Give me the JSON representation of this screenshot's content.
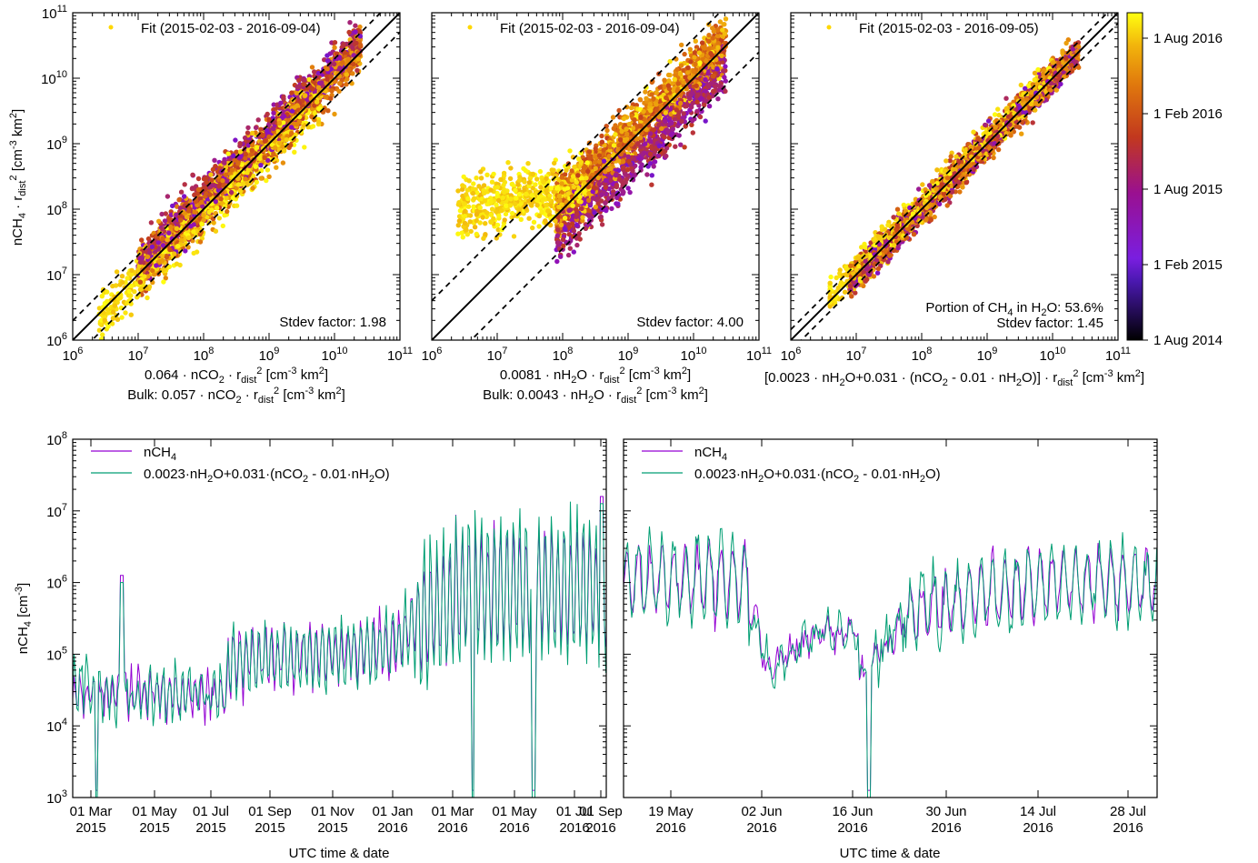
{
  "colorbar": {
    "ticks": [
      "1 Aug 2014",
      "1 Feb 2015",
      "1 Aug 2015",
      "1 Feb 2016",
      "1 Aug 2016"
    ],
    "colors": [
      "#000000",
      "#5a1fd6",
      "#8e0fbf",
      "#c23c1e",
      "#e0780d",
      "#f2b40c",
      "#ffff10"
    ]
  },
  "scatter": {
    "ylabel": "nCH4 · rdist2 [cm-3 km2]",
    "x_ticks": [
      "10^6",
      "10^7",
      "10^8",
      "10^9",
      "10^10",
      "10^11"
    ],
    "y_ticks": [
      "10^6",
      "10^7",
      "10^8",
      "10^9",
      "10^10",
      "10^11"
    ],
    "panels": [
      {
        "legend": "Fit (2015-02-03 - 2016-09-04)",
        "note": "Stdev factor: 1.98",
        "xlabel_1": "0.064 · nCO2 · rdist2 [cm-3 km2]",
        "xlabel_2": "Bulk: 0.057 · nCO2 · rdist2 [cm-3 km2]"
      },
      {
        "legend": "Fit (2015-02-03 - 2016-09-04)",
        "note": "Stdev factor: 4.00",
        "xlabel_1": "0.0081 · nH2O · rdist2 [cm-3 km2]",
        "xlabel_2": "Bulk: 0.0043 · nH2O · rdist2 [cm-3 km2]"
      },
      {
        "legend": "Fit (2015-02-03 - 2016-09-05)",
        "note_1": "Portion of CH4 in H2O: 53.6%",
        "note": "Stdev factor: 1.45",
        "xlabel_1": "[0.0023 · nH2O+0.031 · (nCO2 - 0.01 · nH2O)] · rdist2 [cm-3 km2]"
      }
    ]
  },
  "timeseries": {
    "ylabel": "nCH4 [cm-3]",
    "y_ticks": [
      "10^3",
      "10^4",
      "10^5",
      "10^6",
      "10^7",
      "10^8"
    ],
    "legend_1": "nCH4",
    "legend_2": "0.0023·nH2O+0.031·(nCO2 - 0.01·nH2O)",
    "line_colors": {
      "nCH4": "#9400d3",
      "model": "#009e73"
    },
    "left": {
      "xlabel": "UTC time & date",
      "x_ticks": [
        [
          "01 Mar",
          "2015"
        ],
        [
          "01 May",
          "2015"
        ],
        [
          "01 Jul",
          "2015"
        ],
        [
          "01 Sep",
          "2015"
        ],
        [
          "01 Nov",
          "2015"
        ],
        [
          "01 Jan",
          "2016"
        ],
        [
          "01 Mar",
          "2016"
        ],
        [
          "01 May",
          "2016"
        ],
        [
          "01 Jul",
          "2016"
        ],
        [
          "01 Sep",
          "2016"
        ]
      ]
    },
    "right": {
      "xlabel": "UTC time & date",
      "x_ticks": [
        [
          "19 May",
          "2016"
        ],
        [
          "02 Jun",
          "2016"
        ],
        [
          "16 Jun",
          "2016"
        ],
        [
          "30 Jun",
          "2016"
        ],
        [
          "14 Jul",
          "2016"
        ],
        [
          "28 Jul",
          "2016"
        ]
      ]
    }
  },
  "chart_data": [
    {
      "type": "scatter",
      "title": "",
      "xlabel": "0.064 · nCO2 · rdist2 [cm-3 km2]",
      "ylabel": "nCH4 · rdist2 [cm-3 km2]",
      "xscale": "log",
      "yscale": "log",
      "xlim": [
        1000000.0,
        100000000000.0
      ],
      "ylim": [
        1000000.0,
        100000000000.0
      ],
      "legend": "Fit (2015-02-03 - 2016-09-04)",
      "annotation": "Stdev factor: 1.98",
      "fit_band_factor": 1.98,
      "point_cloud": {
        "x_range": [
          2000000.0,
          40000000000.0
        ],
        "follows": "y≈x",
        "color_by": "date"
      }
    },
    {
      "type": "scatter",
      "title": "",
      "xlabel": "0.0081 · nH2O · rdist2 [cm-3 km2]",
      "ylabel": "nCH4 · rdist2 [cm-3 km2]",
      "xscale": "log",
      "yscale": "log",
      "xlim": [
        1000000.0,
        100000000000.0
      ],
      "ylim": [
        1000000.0,
        100000000000.0
      ],
      "legend": "Fit (2015-02-03 - 2016-09-04)",
      "annotation": "Stdev factor: 4.00",
      "fit_band_factor": 4.0,
      "point_cloud": {
        "x_range": [
          2000000.0,
          30000000000.0
        ],
        "follows": "y≈x (plateau near 1e8 at low x)",
        "color_by": "date"
      }
    },
    {
      "type": "scatter",
      "title": "",
      "xlabel": "[0.0023 · nH2O+0.031 · (nCO2 - 0.01 · nH2O)] · rdist2 [cm-3 km2]",
      "ylabel": "nCH4 · rdist2 [cm-3 km2]",
      "xscale": "log",
      "yscale": "log",
      "xlim": [
        1000000.0,
        100000000000.0
      ],
      "ylim": [
        1000000.0,
        100000000000.0
      ],
      "legend": "Fit (2015-02-03 - 2016-09-05)",
      "annotation": "Portion of CH4 in H2O: 53.6% / Stdev factor: 1.45",
      "fit_band_factor": 1.45,
      "point_cloud": {
        "x_range": [
          10000000.0,
          25000000000.0
        ],
        "follows": "y≈x",
        "color_by": "date"
      }
    },
    {
      "type": "line",
      "xlabel": "UTC time & date",
      "ylabel": "nCH4 [cm-3]",
      "yscale": "log",
      "ylim": [
        1000.0,
        100000000.0
      ],
      "x_range": [
        "2015-02-03",
        "2016-09-05"
      ],
      "series": [
        {
          "name": "nCH4"
        },
        {
          "name": "0.0023·nH2O+0.031·(nCO2 - 0.01·nH2O)"
        }
      ],
      "approx_level": {
        "2015-03": 30000.0,
        "2015-07": 100000.0,
        "2016-01": 200000.0,
        "2016-04": 1000000.0,
        "2016-08": 800000.0
      },
      "dips_to": 1000.0
    },
    {
      "type": "line",
      "xlabel": "UTC time & date",
      "ylabel": "nCH4 [cm-3]",
      "yscale": "log",
      "ylim": [
        1000.0,
        100000000.0
      ],
      "x_range": [
        "2016-05-09",
        "2016-08-04"
      ],
      "series": [
        {
          "name": "nCH4"
        },
        {
          "name": "0.0023·nH2O+0.031·(nCO2 - 0.01·nH2O)"
        }
      ],
      "approx_level": {
        "2016-05-19": 1000000.0,
        "2016-06-05": 50000.0,
        "2016-06-14": 200000.0,
        "2016-06-17": 1000.0,
        "2016-07-01": 1000000.0,
        "2016-07-28": 1000000.0
      }
    }
  ]
}
